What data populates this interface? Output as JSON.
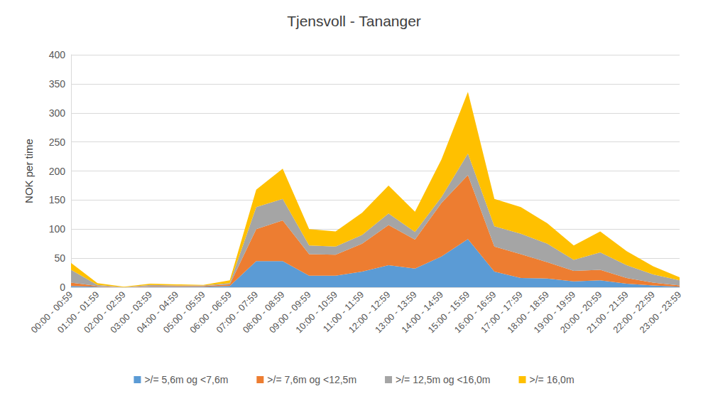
{
  "chart_data": {
    "type": "area",
    "title": "Tjensvoll - Tananger",
    "y_label": "NOK per time",
    "categories": [
      "00:00 - 00:59",
      "01:00 - 01:59",
      "02:00 - 02:59",
      "03:00 - 03:59",
      "04:00 - 04:59",
      "05:00 - 05:59",
      "06:00 - 06:59",
      "07:00 - 07:59",
      "08:00 - 08:59",
      "09:00 - 09:59",
      "10:00 - 10:59",
      "11:00 - 11:59",
      "12:00 - 12:59",
      "13:00 - 13:59",
      "14:00 - 14:59",
      "15:00 - 15:59",
      "16:00 - 16:59",
      "17:00 - 17:59",
      "18:00 - 18:59",
      "19:00 - 19:59",
      "20:00 - 20:59",
      "21:00 - 21:59",
      "22:00 - 22:59",
      "23:00 - 23:59"
    ],
    "series": [
      {
        "name": ">/= 5,6m og <7,6m",
        "color": "#5B9BD5",
        "values": [
          2,
          1,
          0,
          1,
          1,
          1,
          2,
          45,
          45,
          20,
          20,
          27,
          38,
          32,
          53,
          83,
          27,
          16,
          15,
          10,
          12,
          6,
          3,
          1
        ]
      },
      {
        "name": ">/= 7,6m og <12,5m",
        "color": "#ED7D31",
        "values": [
          6,
          1,
          0,
          1,
          1,
          1,
          3,
          55,
          70,
          37,
          36,
          48,
          69,
          50,
          92,
          110,
          43,
          41,
          28,
          18,
          18,
          10,
          5,
          2
        ]
      },
      {
        "name": ">/= 12,5m og <16,0m",
        "color": "#A5A5A5",
        "values": [
          22,
          2,
          0,
          2,
          1,
          1,
          2,
          38,
          37,
          15,
          14,
          15,
          20,
          13,
          10,
          37,
          35,
          35,
          32,
          19,
          30,
          22,
          14,
          9
        ]
      },
      {
        "name": ">/= 16,0m",
        "color": "#FFC000",
        "values": [
          12,
          3,
          1,
          2,
          2,
          1,
          5,
          30,
          52,
          28,
          26,
          38,
          48,
          35,
          65,
          106,
          47,
          46,
          35,
          25,
          36,
          24,
          14,
          5
        ]
      }
    ],
    "ylim": [
      0,
      400
    ],
    "yticks": [
      0,
      50,
      100,
      150,
      200,
      250,
      300,
      350,
      400
    ],
    "stacked": true,
    "grid": true,
    "legend": "bottom"
  }
}
